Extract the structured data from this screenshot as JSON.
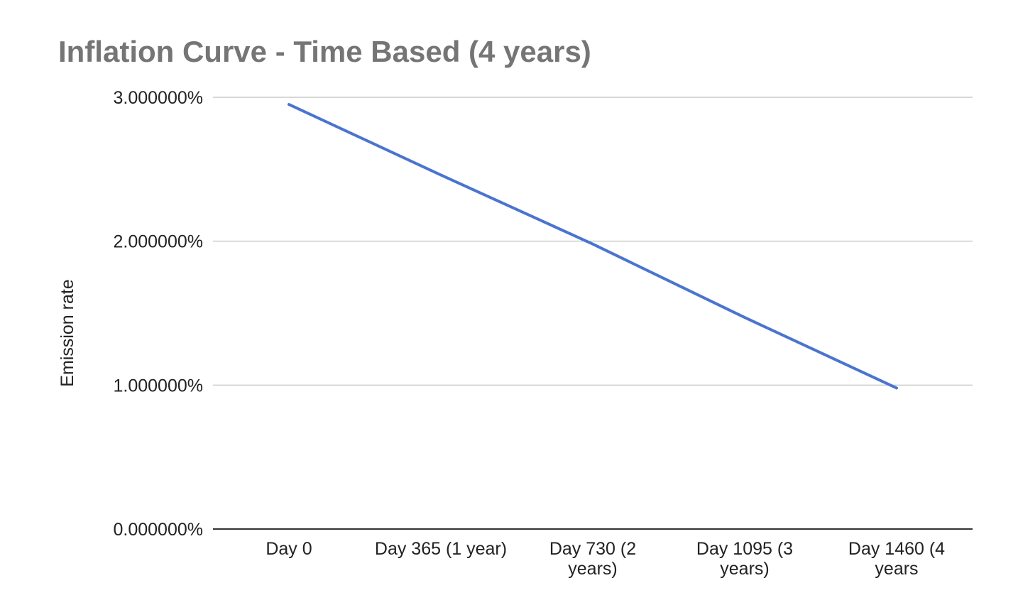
{
  "chart_data": {
    "type": "line",
    "title": "Inflation Curve - Time Based (4 years)",
    "xlabel": "",
    "ylabel": "Emission rate",
    "categories": [
      [
        "Day 0"
      ],
      [
        "Day 365 (1 year)"
      ],
      [
        "Day 730 (2",
        "years)"
      ],
      [
        "Day 1095 (3",
        "years)"
      ],
      [
        "Day 1460 (4",
        "years"
      ]
    ],
    "y_ticks": [
      "0.000000%",
      "1.000000%",
      "2.000000%",
      "3.000000%"
    ],
    "ylim": [
      0,
      3
    ],
    "grid": true,
    "legend": "none",
    "series": [
      {
        "color": "#4a74cf",
        "values": [
          2.95,
          2.46,
          1.98,
          1.47,
          0.98
        ]
      }
    ]
  }
}
